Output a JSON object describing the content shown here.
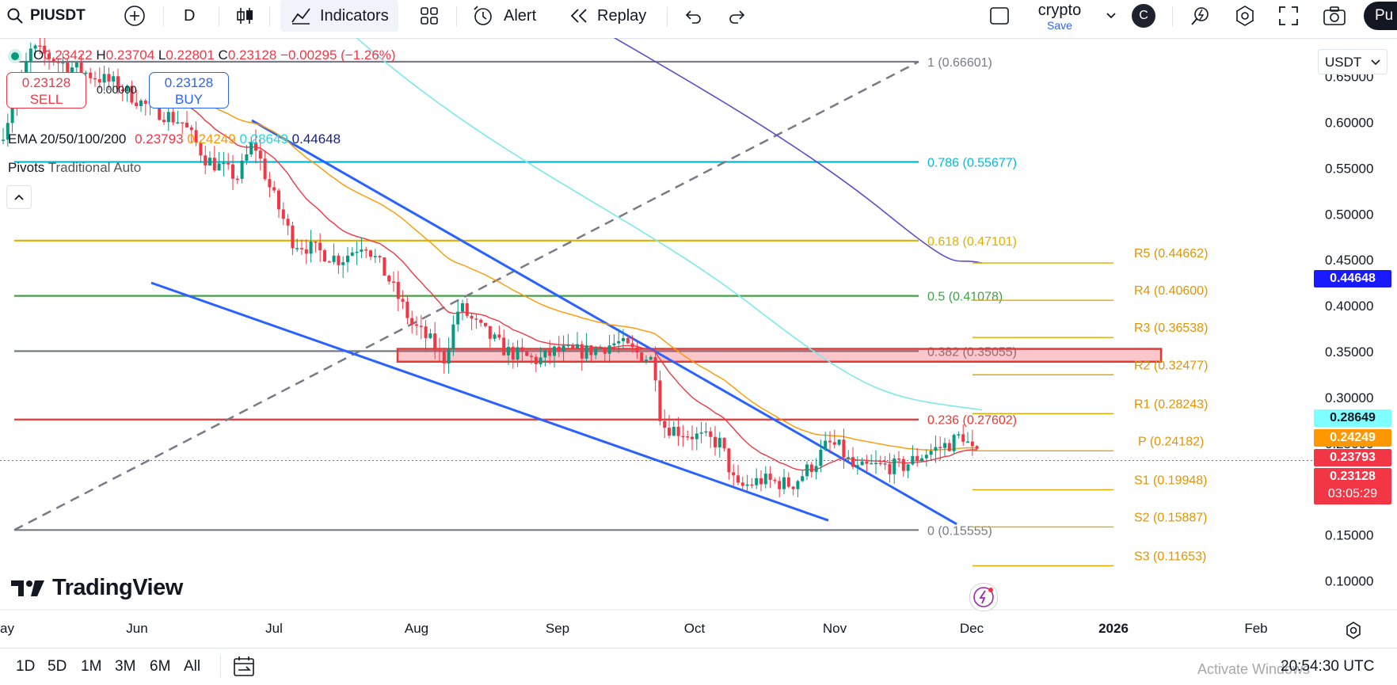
{
  "toolbar": {
    "symbol": "PIUSDT",
    "interval": "D",
    "indicators_label": "Indicators",
    "alert_label": "Alert",
    "replay_label": "Replay",
    "layout_name": "crypto",
    "layout_save": "Save",
    "avatar_letter": "C",
    "publish_label": "Pu"
  },
  "legend": {
    "ohlc": {
      "o_label": "O",
      "o": "0.23422",
      "h_label": "H",
      "h": "0.23704",
      "l_label": "L",
      "l": "0.22801",
      "c_label": "C",
      "c": "0.23128",
      "change": "−0.00295 (−1.26%)"
    },
    "sell": {
      "price": "0.23128",
      "label": "SELL"
    },
    "spread": "0.00000",
    "buy": {
      "price": "0.23128",
      "label": "BUY"
    },
    "ema_label": "EMA 20/50/100/200",
    "ema_values": [
      "0.23793",
      "0.24249",
      "0.28649",
      "0.44648"
    ],
    "pivots_label": "Pivots",
    "pivots_params": "Traditional Auto",
    "collapse_icon": "chevron-up-icon"
  },
  "colors": {
    "up": "#089981",
    "down": "#f23645",
    "ema20": "#f23645",
    "ema50": "#ff9800",
    "ema100": "#7de8e8",
    "ema200": "#5b4fcf",
    "trendline": "#2962ff",
    "pivot": "#e0a800"
  },
  "chart_data": {
    "type": "candlestick",
    "title": "",
    "xlabel": "",
    "ylabel": "",
    "y_axis": {
      "currency": "USDT",
      "ticks": [
        "0.65000",
        "0.60000",
        "0.55000",
        "0.50000",
        "0.45000",
        "0.40000",
        "0.35000",
        "0.30000",
        "0.25000",
        "0.20000",
        "0.15000",
        "0.10000"
      ],
      "ylim": [
        0.085,
        0.7
      ]
    },
    "x_axis": {
      "ticks": [
        "ay",
        "Jun",
        "Jul",
        "Aug",
        "Sep",
        "Oct",
        "Nov",
        "Dec",
        "2026",
        "Feb"
      ]
    },
    "candles": [],
    "last_price": {
      "value": "0.23128",
      "countdown": "03:05:29"
    },
    "axis_tags": [
      {
        "value": "0.44648",
        "kind": "ema200"
      },
      {
        "value": "0.28649",
        "kind": "ema100"
      },
      {
        "value": "0.24249",
        "kind": "ema50"
      },
      {
        "value": "0.23793",
        "kind": "ema20"
      }
    ],
    "fibonacci": [
      {
        "level": "1",
        "price": "0.66601",
        "color": "#787b86"
      },
      {
        "level": "0.786",
        "price": "0.55677",
        "color": "#00bcd4"
      },
      {
        "level": "0.618",
        "price": "0.47101",
        "color": "#e0b000"
      },
      {
        "level": "0.5",
        "price": "0.41078",
        "color": "#43a047"
      },
      {
        "level": "0.382",
        "price": "0.35055",
        "color": "#787b86"
      },
      {
        "level": "0.236",
        "price": "0.27602",
        "color": "#e53935"
      },
      {
        "level": "0",
        "price": "0.15555",
        "color": "#787b86"
      }
    ],
    "pivots": [
      {
        "name": "R5",
        "price": "0.44662"
      },
      {
        "name": "R4",
        "price": "0.40600"
      },
      {
        "name": "R3",
        "price": "0.36538"
      },
      {
        "name": "R2",
        "price": "0.32477"
      },
      {
        "name": "R1",
        "price": "0.28243"
      },
      {
        "name": "P",
        "price": "0.24182"
      },
      {
        "name": "S1",
        "price": "0.19948"
      },
      {
        "name": "S2",
        "price": "0.15887"
      },
      {
        "name": "S3",
        "price": "0.11653"
      }
    ],
    "zone": {
      "from": 0.339,
      "to": 0.353
    }
  },
  "logo_text": "TradingView",
  "range": {
    "buttons": [
      "1D",
      "5D",
      "1M",
      "3M",
      "6M",
      "All"
    ],
    "clock": "20:54:30 UTC",
    "watermark": "Activate Windows"
  }
}
